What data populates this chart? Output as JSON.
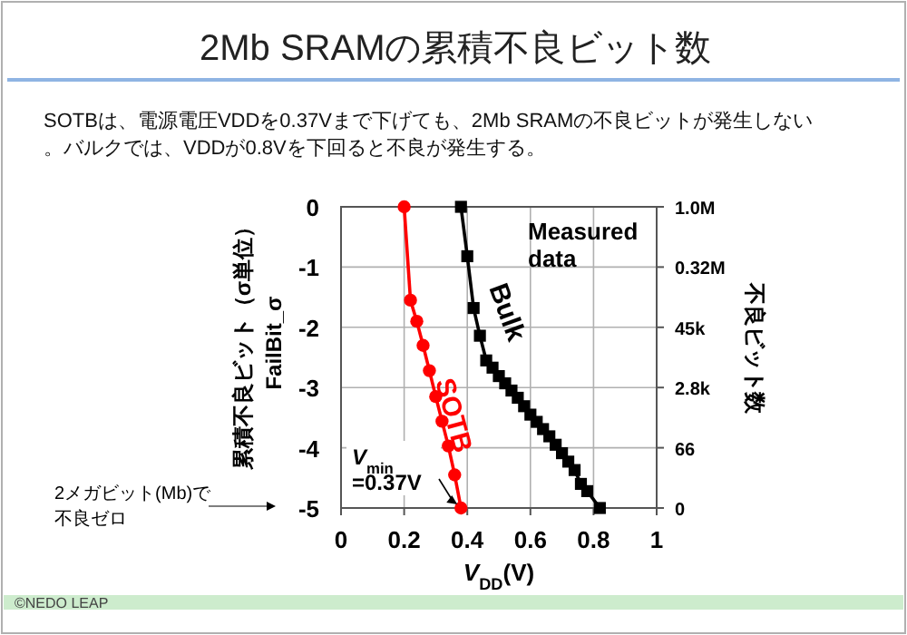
{
  "chart_data": {
    "type": "line",
    "title": "2Mb SRAMの累積不良ビット数",
    "subtitle": "SOTBは、電源電圧VDDを0.37Vまで下げても、2Mb SRAMの不良ビットが発生しない。バルクでは、VDDが0.8Vを下回ると不良が発生する。",
    "xlabel": "*V*$_{DD}$(V)",
    "ylabel": "累積不良ビット（σ単位）\nFailBit_σ",
    "y2label": "不良ビット数",
    "xlim": [
      0,
      1
    ],
    "xticks": [
      0,
      0.2,
      0.4,
      0.6,
      0.8,
      1
    ],
    "ylim": [
      -5,
      0
    ],
    "yticks": [
      -5,
      -4,
      -3,
      -2,
      -1,
      0
    ],
    "grid": true,
    "line_style": "solid",
    "series": [
      {
        "name": "SOTB",
        "color": "#ff0000",
        "marker": "circle",
        "x": [
          0.2,
          0.22,
          0.24,
          0.26,
          0.28,
          0.3,
          0.32,
          0.34,
          0.36,
          0.38
        ],
        "values": [
          0,
          -1.55,
          -1.9,
          -2.3,
          -2.72,
          -3.15,
          -3.56,
          -3.97,
          -4.45,
          -5
        ]
      },
      {
        "name": "Bulk",
        "color": "#000000",
        "marker": "square",
        "x": [
          0.38,
          0.4,
          0.42,
          0.44,
          0.46,
          0.48,
          0.5,
          0.52,
          0.54,
          0.56,
          0.58,
          0.6,
          0.62,
          0.64,
          0.66,
          0.68,
          0.7,
          0.72,
          0.74,
          0.76,
          0.78,
          0.82
        ],
        "values": [
          0,
          -0.82,
          -1.68,
          -2.14,
          -2.55,
          -2.67,
          -2.81,
          -2.93,
          -3.05,
          -3.17,
          -3.31,
          -3.45,
          -3.57,
          -3.69,
          -3.81,
          -3.95,
          -4.09,
          -4.23,
          -4.37,
          -4.6,
          -4.72,
          -5
        ]
      }
    ],
    "annotations": [
      "Measured data",
      {
        "text": "*V*$_{min}$\n=0.37V",
        "x": 0.38,
        "y": -5
      },
      "2メガビット(Mb)で不良ゼロ",
      "©NEDO LEAP",
      "1.0M",
      "0.32M",
      "45k",
      "2.8k",
      "66",
      "0"
    ]
  }
}
